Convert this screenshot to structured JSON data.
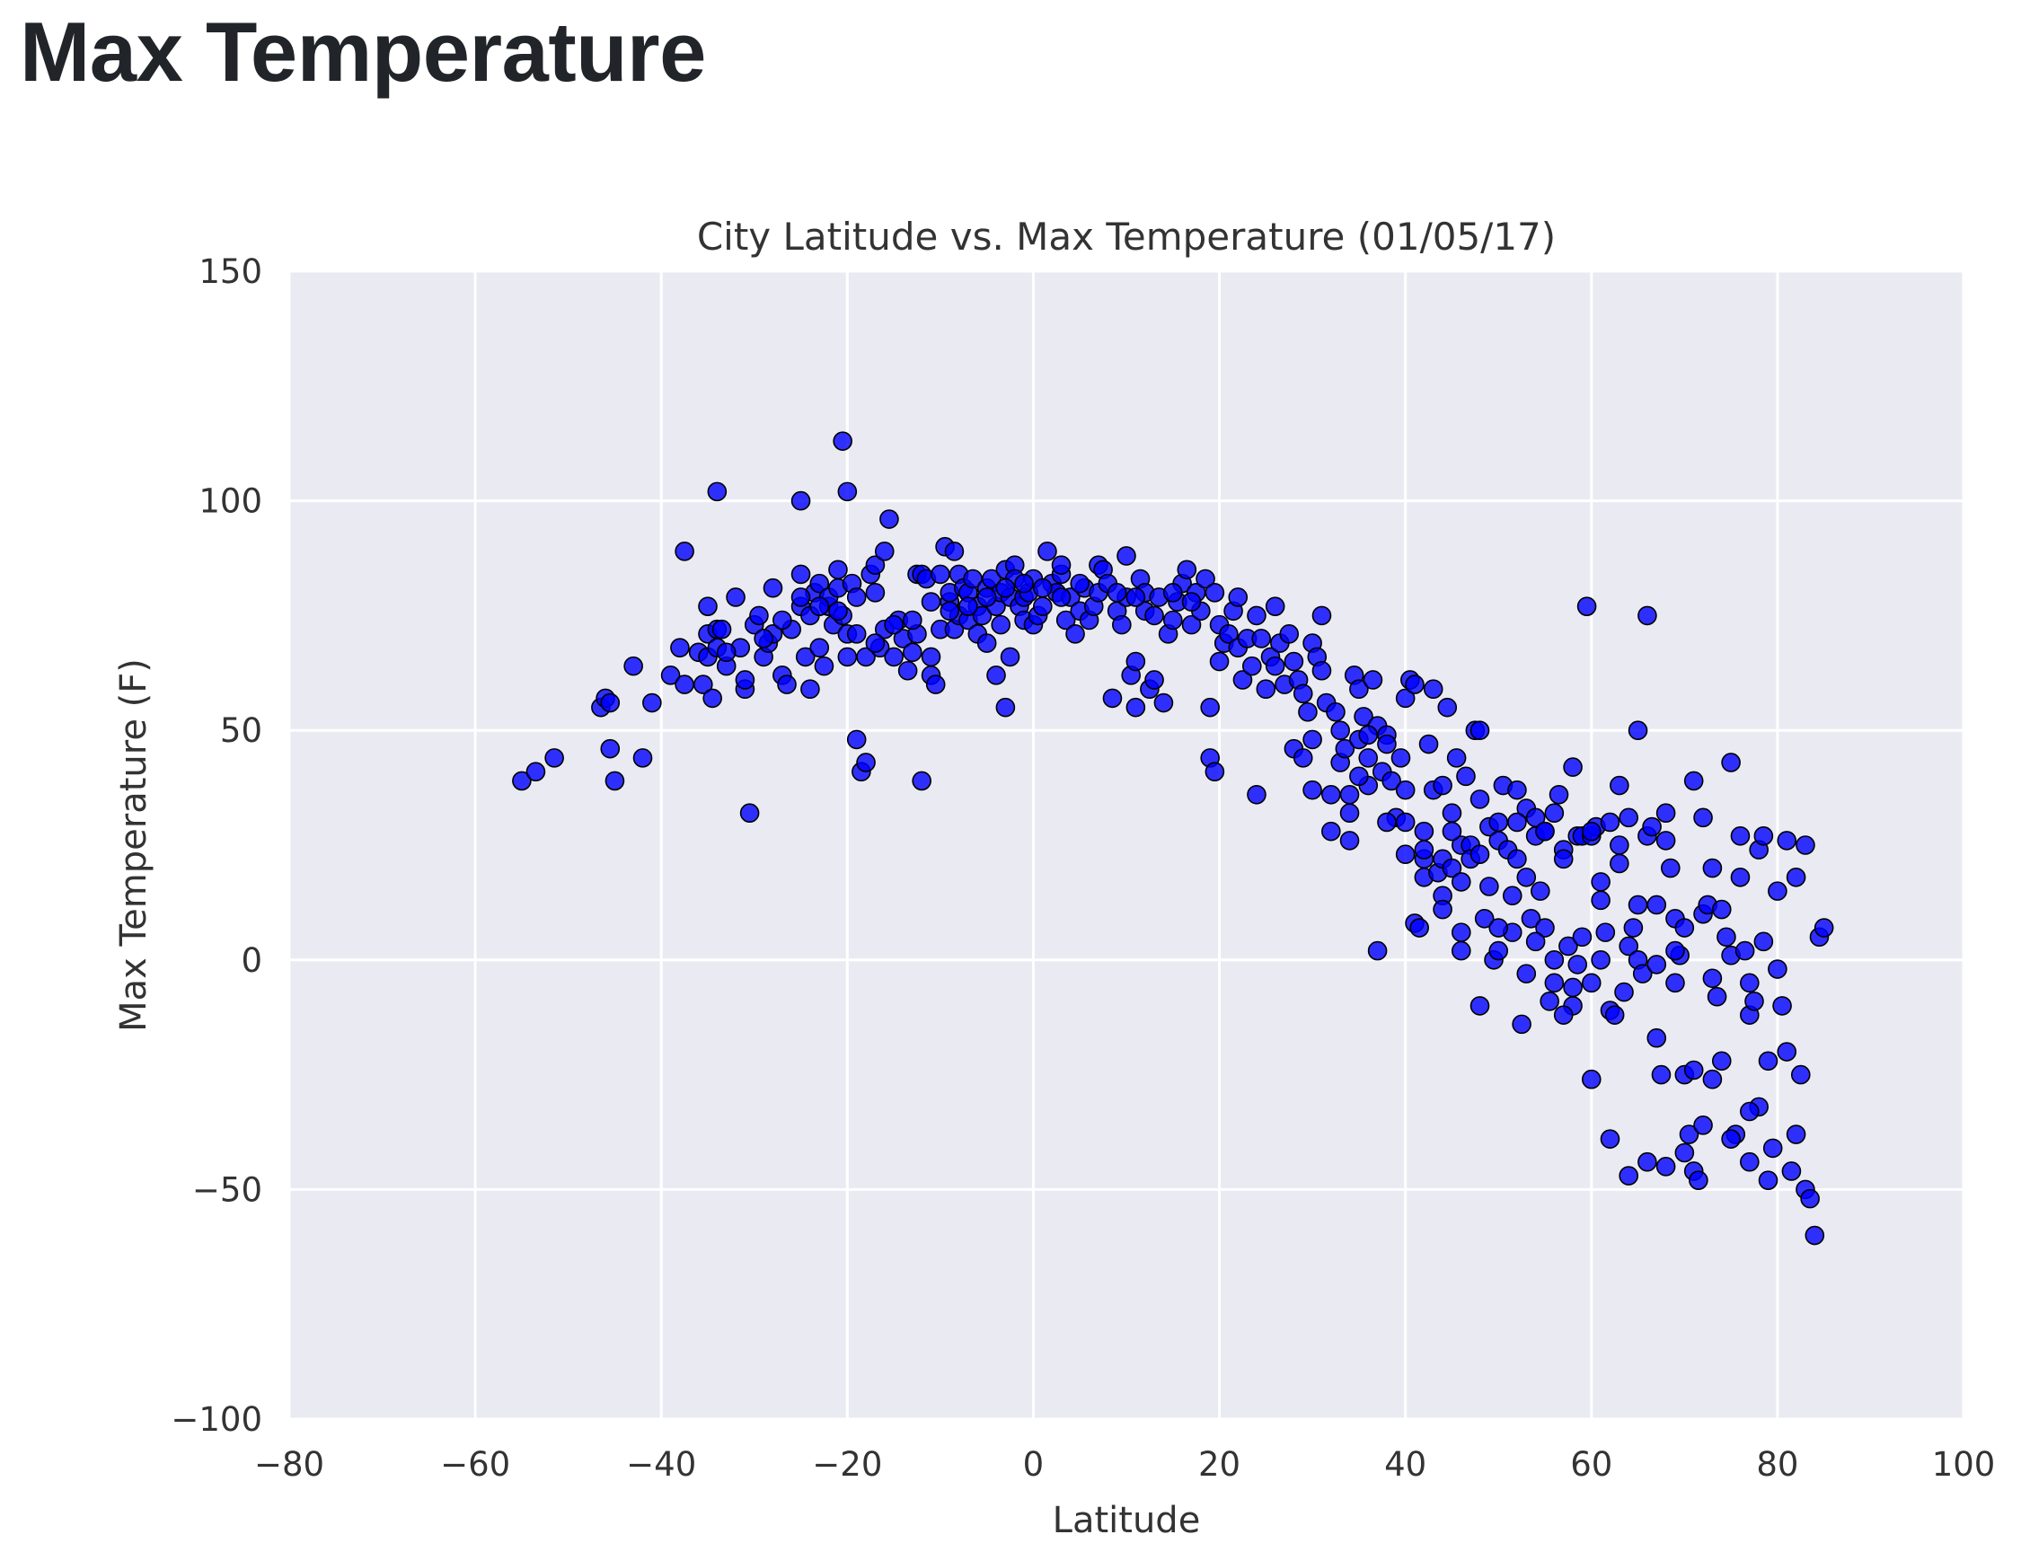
{
  "page": {
    "title": "Max Temperature"
  },
  "colors": {
    "plot_background": "#eaeaf2",
    "grid": "#ffffff",
    "marker_fill": "#0000ff",
    "marker_edge": "#000000"
  },
  "chart_data": {
    "type": "scatter",
    "title": "City Latitude vs. Max Temperature (01/05/17)",
    "xlabel": "Latitude",
    "ylabel": "Max Temperature (F)",
    "xlim": [
      -80,
      100
    ],
    "ylim": [
      -100,
      150
    ],
    "xticks": [
      -80,
      -60,
      -40,
      -20,
      0,
      20,
      40,
      60,
      80,
      100
    ],
    "yticks": [
      -100,
      -50,
      0,
      50,
      100,
      150
    ],
    "xtick_labels": [
      "−80",
      "−60",
      "−40",
      "−20",
      "0",
      "20",
      "40",
      "60",
      "80",
      "100"
    ],
    "ytick_labels": [
      "−100",
      "−50",
      "0",
      "50",
      "100",
      "150"
    ],
    "grid": true,
    "legend": "none",
    "points": [
      [
        -55,
        39
      ],
      [
        -53.5,
        41
      ],
      [
        -51.5,
        44
      ],
      [
        -46.5,
        55
      ],
      [
        -46,
        57
      ],
      [
        -45.5,
        56
      ],
      [
        -45.5,
        46
      ],
      [
        -45,
        39
      ],
      [
        -43,
        64
      ],
      [
        -42,
        44
      ],
      [
        -41,
        56
      ],
      [
        -39,
        62
      ],
      [
        -38,
        68
      ],
      [
        -37.5,
        89
      ],
      [
        -37.5,
        60
      ],
      [
        -36,
        67
      ],
      [
        -35.5,
        60
      ],
      [
        -35,
        66
      ],
      [
        -35,
        71
      ],
      [
        -35,
        77
      ],
      [
        -34.5,
        57
      ],
      [
        -34,
        68
      ],
      [
        -34,
        72
      ],
      [
        -34,
        102
      ],
      [
        -33.5,
        72
      ],
      [
        -33,
        64
      ],
      [
        -32,
        79
      ],
      [
        -31.5,
        68
      ],
      [
        -31,
        59
      ],
      [
        -30.5,
        32
      ],
      [
        -30,
        73
      ],
      [
        -29.5,
        75
      ],
      [
        -29,
        66
      ],
      [
        -28.5,
        69
      ],
      [
        -28,
        71
      ],
      [
        -28,
        81
      ],
      [
        -27,
        62
      ],
      [
        -26.5,
        60
      ],
      [
        -26,
        72
      ],
      [
        -25,
        84
      ],
      [
        -25,
        77
      ],
      [
        -25,
        100
      ],
      [
        -24.5,
        66
      ],
      [
        -24,
        59
      ],
      [
        -24,
        75
      ],
      [
        -23.5,
        80
      ],
      [
        -23,
        82
      ],
      [
        -23,
        68
      ],
      [
        -22.5,
        64
      ],
      [
        -22,
        77
      ],
      [
        -22,
        79
      ],
      [
        -21.5,
        73
      ],
      [
        -21,
        85
      ],
      [
        -21,
        81
      ],
      [
        -20.5,
        113
      ],
      [
        -20.5,
        75
      ],
      [
        -20,
        71
      ],
      [
        -20,
        66
      ],
      [
        -20,
        102
      ],
      [
        -19.5,
        82
      ],
      [
        -19,
        79
      ],
      [
        -19,
        48
      ],
      [
        -18.5,
        41
      ],
      [
        -18,
        43
      ],
      [
        -18,
        66
      ],
      [
        -17.5,
        84
      ],
      [
        -17,
        86
      ],
      [
        -17,
        80
      ],
      [
        -16.5,
        68
      ],
      [
        -16,
        89
      ],
      [
        -16,
        72
      ],
      [
        -15.5,
        96
      ],
      [
        -15,
        66
      ],
      [
        -14.5,
        74
      ],
      [
        -14,
        70
      ],
      [
        -13.5,
        63
      ],
      [
        -13,
        67
      ],
      [
        -12.5,
        84
      ],
      [
        -12.5,
        71
      ],
      [
        -12,
        39
      ],
      [
        -12,
        84
      ],
      [
        -11.5,
        83
      ],
      [
        -11,
        62
      ],
      [
        -11,
        66
      ],
      [
        -10.5,
        60
      ],
      [
        -10,
        84
      ],
      [
        -10,
        72
      ],
      [
        -9.5,
        90
      ],
      [
        -9,
        78
      ],
      [
        -9,
        80
      ],
      [
        -8.5,
        89
      ],
      [
        -8.5,
        72
      ],
      [
        -8,
        84
      ],
      [
        -8,
        75
      ],
      [
        -7.5,
        81
      ],
      [
        -7,
        74
      ],
      [
        -7,
        80
      ],
      [
        -6.5,
        83
      ],
      [
        -6,
        77
      ],
      [
        -6,
        71
      ],
      [
        -5.5,
        75
      ],
      [
        -5,
        81
      ],
      [
        -5,
        69
      ],
      [
        -4.5,
        83
      ],
      [
        -4,
        77
      ],
      [
        -4,
        62
      ],
      [
        -3.5,
        80
      ],
      [
        -3.5,
        73
      ],
      [
        -3,
        55
      ],
      [
        -3,
        85
      ],
      [
        -2.5,
        79
      ],
      [
        -2.5,
        66
      ],
      [
        -2,
        86
      ],
      [
        -2,
        83
      ],
      [
        -1.5,
        77
      ],
      [
        -1,
        74
      ],
      [
        -1,
        79
      ],
      [
        -0.5,
        80
      ],
      [
        0,
        83
      ],
      [
        0,
        73
      ],
      [
        0.5,
        75
      ],
      [
        1,
        77
      ],
      [
        1.5,
        89
      ],
      [
        2,
        82
      ],
      [
        2.5,
        80
      ],
      [
        3,
        84
      ],
      [
        3,
        86
      ],
      [
        3.5,
        74
      ],
      [
        4,
        79
      ],
      [
        4.5,
        71
      ],
      [
        5,
        76
      ],
      [
        5.5,
        81
      ],
      [
        6,
        74
      ],
      [
        6.5,
        77
      ],
      [
        7,
        80
      ],
      [
        7,
        86
      ],
      [
        7.5,
        85
      ],
      [
        8,
        82
      ],
      [
        8.5,
        57
      ],
      [
        9,
        76
      ],
      [
        9.5,
        73
      ],
      [
        10,
        88
      ],
      [
        10,
        79
      ],
      [
        10.5,
        62
      ],
      [
        11,
        55
      ],
      [
        11,
        65
      ],
      [
        11.5,
        83
      ],
      [
        12,
        80
      ],
      [
        12,
        76
      ],
      [
        12.5,
        59
      ],
      [
        13,
        61
      ],
      [
        13.5,
        79
      ],
      [
        14,
        56
      ],
      [
        14.5,
        71
      ],
      [
        15,
        74
      ],
      [
        15.5,
        78
      ],
      [
        16,
        82
      ],
      [
        16.5,
        85
      ],
      [
        17,
        73
      ],
      [
        17.5,
        80
      ],
      [
        18,
        76
      ],
      [
        18.5,
        83
      ],
      [
        19,
        55
      ],
      [
        19,
        44
      ],
      [
        19.5,
        41
      ],
      [
        19.5,
        80
      ],
      [
        20,
        65
      ],
      [
        20,
        73
      ],
      [
        20.5,
        69
      ],
      [
        21,
        71
      ],
      [
        21.5,
        76
      ],
      [
        22,
        68
      ],
      [
        22,
        79
      ],
      [
        22.5,
        61
      ],
      [
        23,
        70
      ],
      [
        23.5,
        64
      ],
      [
        24,
        36
      ],
      [
        24,
        75
      ],
      [
        24.5,
        70
      ],
      [
        25,
        59
      ],
      [
        25.5,
        66
      ],
      [
        26,
        64
      ],
      [
        26,
        77
      ],
      [
        26.5,
        69
      ],
      [
        27,
        60
      ],
      [
        27.5,
        71
      ],
      [
        28,
        46
      ],
      [
        28,
        65
      ],
      [
        28.5,
        61
      ],
      [
        29,
        44
      ],
      [
        29,
        58
      ],
      [
        29.5,
        54
      ],
      [
        30,
        37
      ],
      [
        30,
        69
      ],
      [
        30.5,
        66
      ],
      [
        31,
        75
      ],
      [
        31,
        63
      ],
      [
        31.5,
        56
      ],
      [
        32,
        28
      ],
      [
        32.5,
        54
      ],
      [
        33,
        50
      ],
      [
        33,
        43
      ],
      [
        33.5,
        46
      ],
      [
        34,
        36
      ],
      [
        34,
        32
      ],
      [
        34.5,
        62
      ],
      [
        35,
        48
      ],
      [
        35,
        59
      ],
      [
        35.5,
        53
      ],
      [
        36,
        38
      ],
      [
        36,
        44
      ],
      [
        36.5,
        61
      ],
      [
        37,
        2
      ],
      [
        37,
        51
      ],
      [
        37.5,
        41
      ],
      [
        38,
        49
      ],
      [
        38.5,
        39
      ],
      [
        39,
        31
      ],
      [
        39.5,
        44
      ],
      [
        40,
        57
      ],
      [
        40,
        37
      ],
      [
        40.5,
        61
      ],
      [
        41,
        60
      ],
      [
        41,
        8
      ],
      [
        41.5,
        7
      ],
      [
        42,
        18
      ],
      [
        42,
        28
      ],
      [
        42.5,
        47
      ],
      [
        43,
        59
      ],
      [
        43,
        37
      ],
      [
        43.5,
        19
      ],
      [
        44,
        22
      ],
      [
        44,
        38
      ],
      [
        44.5,
        55
      ],
      [
        45,
        20
      ],
      [
        45,
        32
      ],
      [
        45.5,
        44
      ],
      [
        46,
        25
      ],
      [
        46,
        17
      ],
      [
        46.5,
        40
      ],
      [
        47,
        25
      ],
      [
        47,
        22
      ],
      [
        47.5,
        50
      ],
      [
        48,
        50
      ],
      [
        48,
        35
      ],
      [
        48.5,
        9
      ],
      [
        49,
        29
      ],
      [
        49,
        16
      ],
      [
        49.5,
        0
      ],
      [
        50,
        26
      ],
      [
        50,
        2
      ],
      [
        50.5,
        38
      ],
      [
        51,
        24
      ],
      [
        51.5,
        14
      ],
      [
        51.5,
        6
      ],
      [
        52,
        37
      ],
      [
        52,
        22
      ],
      [
        52.5,
        -14
      ],
      [
        53,
        33
      ],
      [
        53,
        18
      ],
      [
        53.5,
        9
      ],
      [
        54,
        31
      ],
      [
        54,
        27
      ],
      [
        54.5,
        15
      ],
      [
        55,
        28
      ],
      [
        55,
        7
      ],
      [
        55.5,
        -9
      ],
      [
        56,
        0
      ],
      [
        56,
        32
      ],
      [
        56.5,
        36
      ],
      [
        57,
        24
      ],
      [
        57,
        22
      ],
      [
        57.5,
        3
      ],
      [
        58,
        -6
      ],
      [
        58,
        42
      ],
      [
        58.5,
        27
      ],
      [
        58.5,
        -1
      ],
      [
        59,
        27
      ],
      [
        59,
        5
      ],
      [
        59.5,
        77
      ],
      [
        60,
        27
      ],
      [
        60,
        -5
      ],
      [
        60.5,
        29
      ],
      [
        61,
        17
      ],
      [
        61,
        0
      ],
      [
        61.5,
        6
      ],
      [
        62,
        -11
      ],
      [
        62,
        30
      ],
      [
        62.5,
        -12
      ],
      [
        63,
        38
      ],
      [
        63,
        25
      ],
      [
        63.5,
        -7
      ],
      [
        64,
        3
      ],
      [
        64,
        31
      ],
      [
        64.5,
        7
      ],
      [
        65,
        50
      ],
      [
        65,
        0
      ],
      [
        65.5,
        -3
      ],
      [
        66,
        75
      ],
      [
        66,
        27
      ],
      [
        66.5,
        29
      ],
      [
        67,
        12
      ],
      [
        67,
        -17
      ],
      [
        67.5,
        -25
      ],
      [
        68,
        32
      ],
      [
        68,
        26
      ],
      [
        68.5,
        20
      ],
      [
        69,
        -5
      ],
      [
        69,
        9
      ],
      [
        69.5,
        1
      ],
      [
        70,
        7
      ],
      [
        70,
        -25
      ],
      [
        70.5,
        -38
      ],
      [
        71,
        -46
      ],
      [
        71,
        39
      ],
      [
        71.5,
        -48
      ],
      [
        72,
        31
      ],
      [
        72,
        10
      ],
      [
        72.5,
        12
      ],
      [
        73,
        20
      ],
      [
        73,
        -4
      ],
      [
        73.5,
        -8
      ],
      [
        74,
        -22
      ],
      [
        74,
        11
      ],
      [
        74.5,
        5
      ],
      [
        75,
        43
      ],
      [
        75,
        1
      ],
      [
        75.5,
        -38
      ],
      [
        76,
        27
      ],
      [
        76,
        18
      ],
      [
        76.5,
        2
      ],
      [
        77,
        -44
      ],
      [
        77,
        -12
      ],
      [
        77.5,
        -9
      ],
      [
        78,
        -32
      ],
      [
        78,
        24
      ],
      [
        78.5,
        4
      ],
      [
        79,
        -48
      ],
      [
        79,
        -22
      ],
      [
        79.5,
        -41
      ],
      [
        80,
        15
      ],
      [
        80,
        -2
      ],
      [
        80.5,
        -10
      ],
      [
        81,
        -20
      ],
      [
        81,
        26
      ],
      [
        81.5,
        -46
      ],
      [
        82,
        -38
      ],
      [
        82,
        18
      ],
      [
        82.5,
        -25
      ],
      [
        83,
        25
      ],
      [
        83,
        -50
      ],
      [
        83.5,
        -52
      ],
      [
        84,
        -60
      ],
      [
        84.5,
        5
      ],
      [
        85,
        7
      ],
      [
        77,
        -5
      ],
      [
        78.5,
        27
      ],
      [
        40,
        30
      ],
      [
        35,
        40
      ],
      [
        45,
        28
      ],
      [
        50,
        30
      ],
      [
        55,
        28
      ],
      [
        60,
        28
      ],
      [
        38,
        47
      ],
      [
        42,
        22
      ],
      [
        44,
        14
      ],
      [
        46,
        6
      ],
      [
        48,
        23
      ],
      [
        52,
        30
      ],
      [
        54,
        4
      ],
      [
        56,
        -5
      ],
      [
        58,
        -10
      ],
      [
        60,
        -26
      ],
      [
        62,
        -39
      ],
      [
        64,
        -47
      ],
      [
        66,
        -44
      ],
      [
        68,
        -45
      ],
      [
        70,
        -42
      ],
      [
        72,
        -36
      ],
      [
        61,
        13
      ],
      [
        63,
        21
      ],
      [
        65,
        12
      ],
      [
        67,
        -1
      ],
      [
        69,
        2
      ],
      [
        71,
        -24
      ],
      [
        73,
        -26
      ],
      [
        75,
        -39
      ],
      [
        77,
        -33
      ],
      [
        30,
        48
      ],
      [
        32,
        36
      ],
      [
        34,
        26
      ],
      [
        36,
        49
      ],
      [
        38,
        30
      ],
      [
        40,
        23
      ],
      [
        42,
        24
      ],
      [
        44,
        11
      ],
      [
        46,
        2
      ],
      [
        48,
        -10
      ],
      [
        50,
        7
      ],
      [
        53,
        -3
      ],
      [
        57,
        -12
      ],
      [
        15,
        80
      ],
      [
        17,
        78
      ],
      [
        13,
        75
      ],
      [
        11,
        79
      ],
      [
        9,
        80
      ],
      [
        5,
        82
      ],
      [
        3,
        79
      ],
      [
        1,
        81
      ],
      [
        -1,
        82
      ],
      [
        -3,
        81
      ],
      [
        -5,
        79
      ],
      [
        -7,
        77
      ],
      [
        -9,
        76
      ],
      [
        -11,
        78
      ],
      [
        -13,
        74
      ],
      [
        -15,
        73
      ],
      [
        -17,
        69
      ],
      [
        -19,
        71
      ],
      [
        -21,
        76
      ],
      [
        -23,
        77
      ],
      [
        -25,
        79
      ],
      [
        -27,
        74
      ],
      [
        -29,
        70
      ],
      [
        -31,
        61
      ],
      [
        -33,
        67
      ]
    ]
  }
}
